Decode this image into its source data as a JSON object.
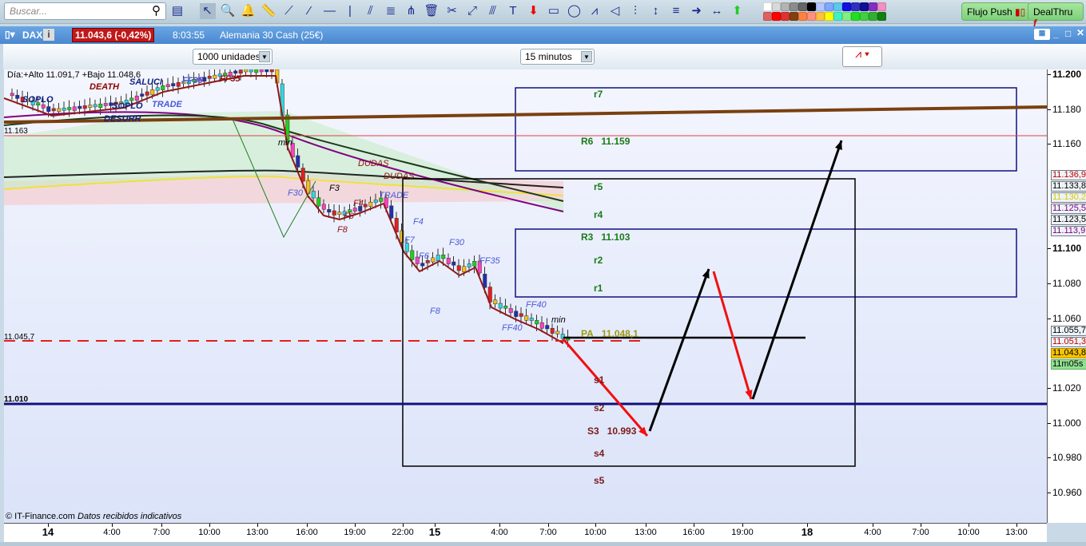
{
  "toolbar": {
    "search_placeholder": "Buscar...",
    "tools": [
      "add-chart",
      "pointer",
      "zoom",
      "alert-bell",
      "ruler",
      "trend-line",
      "segment",
      "horizontal-line",
      "vertical-line",
      "channel",
      "fibonacci",
      "pitchfork",
      "trash",
      "properties",
      "line-extend",
      "parallel-lines",
      "text",
      "arrow-down",
      "rectangle",
      "ellipse",
      "support-resistance",
      "triangle",
      "channel-2",
      "vertical-measure",
      "fibonacci-2",
      "arrow-right",
      "horizontal-measure",
      "arrow-up"
    ],
    "colors": [
      "#ffffff",
      "#d9d9d9",
      "#b3b3b3",
      "#8c8c8c",
      "#666666",
      "#000000",
      "#b3c6ff",
      "#80a6ff",
      "#5cc8f0",
      "#1010e0",
      "#3030c0",
      "#101090",
      "#8030c0",
      "#f090c0",
      "#e06060",
      "#ff0000",
      "#e03030",
      "#804010",
      "#ff8040",
      "#ff9080",
      "#ffc040",
      "#ffff00",
      "#40f0c0",
      "#80f080",
      "#20e020",
      "#40d040",
      "#30b030",
      "#108010"
    ],
    "flujo_push": "Flujo Push",
    "dealthru": "DealThru"
  },
  "instrument": {
    "symbol": "DAX",
    "price_badge": "11.043,6 (-0,42%)",
    "time": "8:03:55",
    "name": "Alemania 30 Cash (25€)",
    "badge_color": "#c01818"
  },
  "subbar": {
    "units": "1000 unidades",
    "timeframe": "15 minutos"
  },
  "chart": {
    "day_info": "Día:+Alto 11.091,7 +Bajo 11.048,6",
    "copyright": "© IT-Finance.com",
    "disclaimer": "Datos recibidos indicativos",
    "left_labels": [
      "11.163",
      "11.045,7",
      "11.010"
    ],
    "pivots": {
      "r7": "r7",
      "R6": "R6",
      "R6v": "11.159",
      "r5": "r5",
      "r4": "r4",
      "R3": "R3",
      "R3v": "11.103",
      "r2": "r2",
      "r1": "r1",
      "PA": "PA",
      "PAv": "11.048,1",
      "s1": "s1",
      "s2": "s2",
      "S3": "S3",
      "S3v": "10.993",
      "s4": "s4",
      "s5": "s5"
    },
    "annotations": [
      "SOPLO",
      "DEATH",
      "SALUCI",
      "FF35",
      "SOPLO",
      "TRADE",
      "DESURR",
      "FF35",
      "min",
      "F30",
      "F3",
      "DUDAS",
      "DUDAS",
      "TRADE",
      "F6",
      "F4",
      "F8",
      "F4",
      "F7",
      "F6",
      "F30",
      "FF35",
      "F8",
      "FF40",
      "FF40",
      "min"
    ]
  },
  "price_axis": {
    "ticks": [
      "11.200",
      "11.180",
      "11.160",
      "11.100",
      "11.080",
      "11.060",
      "11.020",
      "11.000",
      "10.980",
      "10.960"
    ],
    "markers": [
      {
        "v": "11.136,9",
        "c": "#c00000"
      },
      {
        "v": "11.133,8",
        "c": "#000"
      },
      {
        "v": "11.130,2",
        "c": "#d8c800"
      },
      {
        "v": "11.125,5",
        "c": "#800080"
      },
      {
        "v": "11.123,5",
        "c": "#000"
      },
      {
        "v": "11.113,9",
        "c": "#800080"
      },
      {
        "v": "11.055,7",
        "c": "#000"
      },
      {
        "v": "11.051,3",
        "c": "#c00000"
      }
    ],
    "current": "11.043,8",
    "countdown": "11m05s"
  },
  "time_axis": [
    "14",
    "4:00",
    "7:00",
    "10:00",
    "13:00",
    "16:00",
    "19:00",
    "22:00",
    "15",
    "4:00",
    "7:00",
    "10:00",
    "13:00",
    "16:00",
    "19:00",
    "18",
    "4:00",
    "7:00",
    "10:00",
    "13:00"
  ]
}
